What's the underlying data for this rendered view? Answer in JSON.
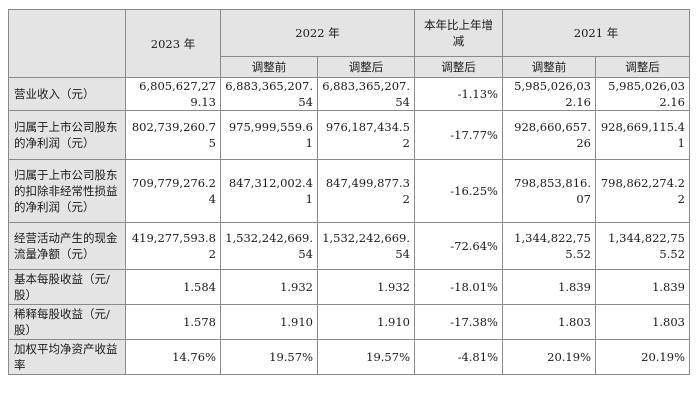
{
  "header": {
    "y2023": "2023 年",
    "y2022": "2022 年",
    "change": "本年比上年增减",
    "y2021": "2021 年",
    "before": "调整前",
    "after": "调整后",
    "after_change": "调整后",
    "before_2021": "调整前",
    "after_2021": "调整后"
  },
  "rows": [
    {
      "label": "营业收入（元）",
      "v2023": "6,805,627,279.13",
      "v2022_before": "6,883,365,207.54",
      "v2022_after": "6,883,365,207.54",
      "change": "-1.13%",
      "v2021_before": "5,985,026,032.16",
      "v2021_after": "5,985,026,032.16"
    },
    {
      "label": "归属于上市公司股东的净利润（元）",
      "v2023": "802,739,260.75",
      "v2022_before": "975,999,559.61",
      "v2022_after": "976,187,434.52",
      "change": "-17.77%",
      "v2021_before": "928,660,657.26",
      "v2021_after": "928,669,115.41"
    },
    {
      "label": "归属于上市公司股东的扣除非经常性损益的净利润（元）",
      "v2023": "709,779,276.24",
      "v2022_before": "847,312,002.41",
      "v2022_after": "847,499,877.32",
      "change": "-16.25%",
      "v2021_before": "798,853,816.07",
      "v2021_after": "798,862,274.22"
    },
    {
      "label": "经营活动产生的现金流量净额（元）",
      "v2023": "419,277,593.82",
      "v2022_before": "1,532,242,669.54",
      "v2022_after": "1,532,242,669.54",
      "change": "-72.64%",
      "v2021_before": "1,344,822,755.52",
      "v2021_after": "1,344,822,755.52"
    },
    {
      "label": "基本每股收益（元/股）",
      "v2023": "1.584",
      "v2022_before": "1.932",
      "v2022_after": "1.932",
      "change": "-18.01%",
      "v2021_before": "1.839",
      "v2021_after": "1.839"
    },
    {
      "label": "稀释每股收益（元/股）",
      "v2023": "1.578",
      "v2022_before": "1.910",
      "v2022_after": "1.910",
      "change": "-17.38%",
      "v2021_before": "1.803",
      "v2021_after": "1.803"
    },
    {
      "label": "加权平均净资产收益率",
      "v2023": "14.76%",
      "v2022_before": "19.57%",
      "v2022_after": "19.57%",
      "change": "-4.81%",
      "v2021_before": "20.19%",
      "v2021_after": "20.19%"
    }
  ]
}
